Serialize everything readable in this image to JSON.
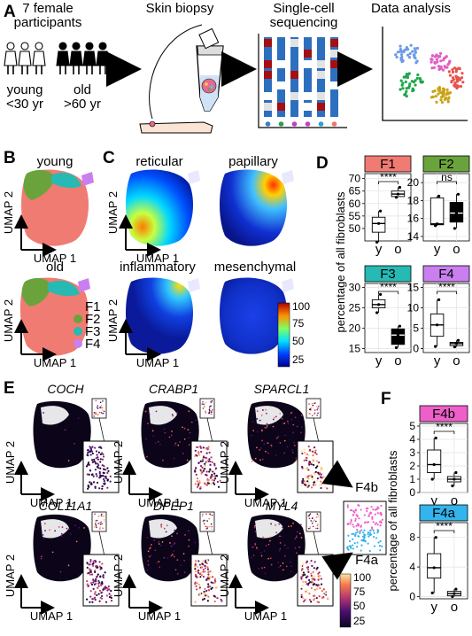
{
  "panels": {
    "A": "A",
    "B": "B",
    "C": "C",
    "D": "D",
    "E": "E",
    "F": "F"
  },
  "panelA": {
    "participants_line1": "7 female",
    "participants_line2": "participants",
    "young_label": "young",
    "young_age": "<30 yr",
    "old_label": "old",
    "old_age": ">60 yr",
    "biopsy": "Skin biopsy",
    "seq_line1": "Single-cell",
    "seq_line2": "sequencing",
    "analysis": "Data analysis"
  },
  "panelB": {
    "title_young": "young",
    "title_old": "old",
    "umap1": "UMAP 1",
    "umap2": "UMAP 2",
    "legend": [
      {
        "label": "F1",
        "color": "#f07b72"
      },
      {
        "label": "F2",
        "color": "#6aa33c"
      },
      {
        "label": "F3",
        "color": "#27b9b3"
      },
      {
        "label": "F4",
        "color": "#c97ff0"
      }
    ]
  },
  "panelC": {
    "titles": [
      "reticular",
      "papillary",
      "inflammatory",
      "mesenchymal"
    ],
    "umap1": "UMAP 1",
    "umap2": "UMAP 2",
    "colorbar_ticks": [
      "100",
      "75",
      "50",
      "25"
    ]
  },
  "panelE": {
    "genes": [
      "COCH",
      "CRABP1",
      "SPARCL1",
      "COL11A1",
      "DPEP1",
      "MYL4"
    ],
    "umap1": "UMAP 1",
    "umap2": "UMAP 2",
    "f4b": "F4b",
    "f4a": "F4a",
    "colorbar_ticks": [
      "100",
      "75",
      "50",
      "25"
    ]
  },
  "chart_data": [
    {
      "type": "box",
      "title": "F1",
      "title_color": "#f07b72",
      "categories": [
        "y",
        "o"
      ],
      "ylim": [
        45,
        72
      ],
      "yticks": [
        50,
        55,
        60,
        65,
        70
      ],
      "boxes": [
        {
          "q1": 48.5,
          "median": 52,
          "q3": 54.5,
          "min": 44.5,
          "max": 57,
          "fill": "#ffffff"
        },
        {
          "q1": 62.8,
          "median": 63.8,
          "q3": 65,
          "min": 62.5,
          "max": 66.5,
          "fill": "#ffffff"
        }
      ],
      "sig": "****",
      "ylabel": "percentage of all fibroblasts"
    },
    {
      "type": "box",
      "title": "F2",
      "title_color": "#6aa33c",
      "categories": [
        "y",
        "o"
      ],
      "ylim": [
        13.5,
        21
      ],
      "yticks": [
        14,
        16,
        18,
        20
      ],
      "boxes": [
        {
          "q1": 15.3,
          "median": 15.4,
          "q3": 18.3,
          "min": 15.2,
          "max": 18.5,
          "fill": "#ffffff"
        },
        {
          "q1": 15.6,
          "median": 16.6,
          "q3": 17.8,
          "min": 14.9,
          "max": 18.7,
          "fill": "#000000"
        }
      ],
      "sig": "ns"
    },
    {
      "type": "box",
      "title": "F3",
      "title_color": "#27b9b3",
      "categories": [
        "y",
        "o"
      ],
      "ylim": [
        14,
        31
      ],
      "yticks": [
        15,
        20,
        25,
        30
      ],
      "boxes": [
        {
          "q1": 25,
          "median": 25.8,
          "q3": 27,
          "min": 23.8,
          "max": 28.3,
          "fill": "#ffffff"
        },
        {
          "q1": 16,
          "median": 18.3,
          "q3": 19.8,
          "min": 15.2,
          "max": 20.5,
          "fill": "#000000"
        }
      ],
      "sig": "****"
    },
    {
      "type": "box",
      "title": "F4",
      "title_color": "#c97ff0",
      "categories": [
        "y",
        "o"
      ],
      "ylim": [
        -1,
        16
      ],
      "yticks": [
        0,
        5,
        10,
        15
      ],
      "boxes": [
        {
          "q1": 3,
          "median": 5.8,
          "q3": 8.5,
          "min": 0.5,
          "max": 12,
          "fill": "#ffffff"
        },
        {
          "q1": 0.7,
          "median": 1.2,
          "q3": 1.5,
          "min": 0.4,
          "max": 2,
          "fill": "#ffffff"
        }
      ],
      "sig": "****"
    },
    {
      "type": "box",
      "title": "F4b",
      "title_color": "#ee5fc9",
      "categories": [
        "y",
        "o"
      ],
      "ylim": [
        0,
        5.2
      ],
      "yticks": [
        0,
        1,
        2,
        3,
        4,
        5
      ],
      "boxes": [
        {
          "q1": 1.5,
          "median": 2.1,
          "q3": 3.2,
          "min": 1,
          "max": 4.1,
          "fill": "#ffffff"
        },
        {
          "q1": 0.8,
          "median": 1,
          "q3": 1.2,
          "min": 0.5,
          "max": 1.5,
          "fill": "#ffffff"
        }
      ],
      "sig": "****",
      "ylabel": "percentage of all fibroblasts"
    },
    {
      "type": "box",
      "title": "F4a",
      "title_color": "#33b4ec",
      "categories": [
        "y",
        "o"
      ],
      "ylim": [
        -0.3,
        10
      ],
      "yticks": [
        0,
        4,
        8
      ],
      "boxes": [
        {
          "q1": 2.5,
          "median": 3.9,
          "q3": 5.8,
          "min": 0.5,
          "max": 8,
          "fill": "#ffffff"
        },
        {
          "q1": 0.1,
          "median": 0.4,
          "q3": 0.7,
          "min": 0,
          "max": 1,
          "fill": "#ffffff"
        }
      ],
      "sig": "****"
    }
  ]
}
